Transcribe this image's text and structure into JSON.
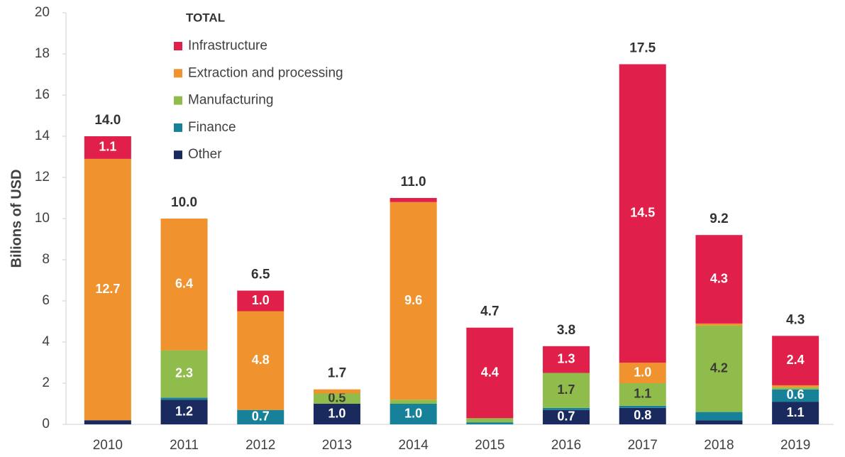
{
  "chart_data": {
    "type": "stacked_bar",
    "y_label": "Bilions of USD",
    "legend_title": "TOTAL",
    "categories": [
      "2010",
      "2011",
      "2012",
      "2013",
      "2014",
      "2015",
      "2016",
      "2017",
      "2018",
      "2019"
    ],
    "series": [
      {
        "name": "Infrastructure",
        "color": "#e0204a",
        "values": [
          1.1,
          0,
          1.0,
          0,
          0.2,
          4.4,
          1.3,
          14.5,
          4.3,
          2.4
        ],
        "value_labels": [
          "1.1",
          null,
          "1.0",
          null,
          null,
          "4.4",
          "1.3",
          "14.5",
          "4.3",
          "2.4"
        ]
      },
      {
        "name": "Extraction and processing",
        "color": "#f0922e",
        "values": [
          12.7,
          6.4,
          4.8,
          0.2,
          9.6,
          0,
          0,
          1.0,
          0.1,
          0.1
        ],
        "value_labels": [
          "12.7",
          "6.4",
          "4.8",
          null,
          "9.6",
          null,
          null,
          "1.0",
          null,
          null
        ]
      },
      {
        "name": "Manufacturing",
        "color": "#8fbc4a",
        "values": [
          0,
          2.3,
          0,
          0.5,
          0.2,
          0.2,
          1.7,
          1.1,
          4.2,
          0.1
        ],
        "value_labels": [
          null,
          "2.3",
          null,
          "0.5",
          null,
          null,
          "1.7",
          "1.1",
          "4.2",
          null
        ]
      },
      {
        "name": "Finance",
        "color": "#17819a",
        "values": [
          0,
          0.1,
          0.7,
          0,
          1.0,
          0.1,
          0.1,
          0.1,
          0.4,
          0.6
        ],
        "value_labels": [
          null,
          null,
          "0.7",
          null,
          "1.0",
          null,
          null,
          null,
          null,
          "0.6"
        ]
      },
      {
        "name": "Other",
        "color": "#1a2a5e",
        "values": [
          0.2,
          1.2,
          0,
          1.0,
          0,
          0,
          0.7,
          0.8,
          0.2,
          1.1
        ],
        "value_labels": [
          null,
          "1.2",
          null,
          "1.0",
          null,
          null,
          "0.7",
          "0.8",
          null,
          "1.1"
        ]
      }
    ],
    "totals": [
      14.0,
      10.0,
      6.5,
      1.7,
      11.0,
      4.7,
      3.8,
      17.5,
      9.2,
      4.3
    ],
    "total_labels": [
      "14.0",
      "10.0",
      "6.5",
      "1.7",
      "11.0",
      "4.7",
      "3.8",
      "17.5",
      "9.2",
      "4.3"
    ],
    "ylim": [
      0,
      20
    ],
    "yticks": [
      0,
      2,
      4,
      6,
      8,
      10,
      12,
      14,
      16,
      18,
      20
    ]
  }
}
